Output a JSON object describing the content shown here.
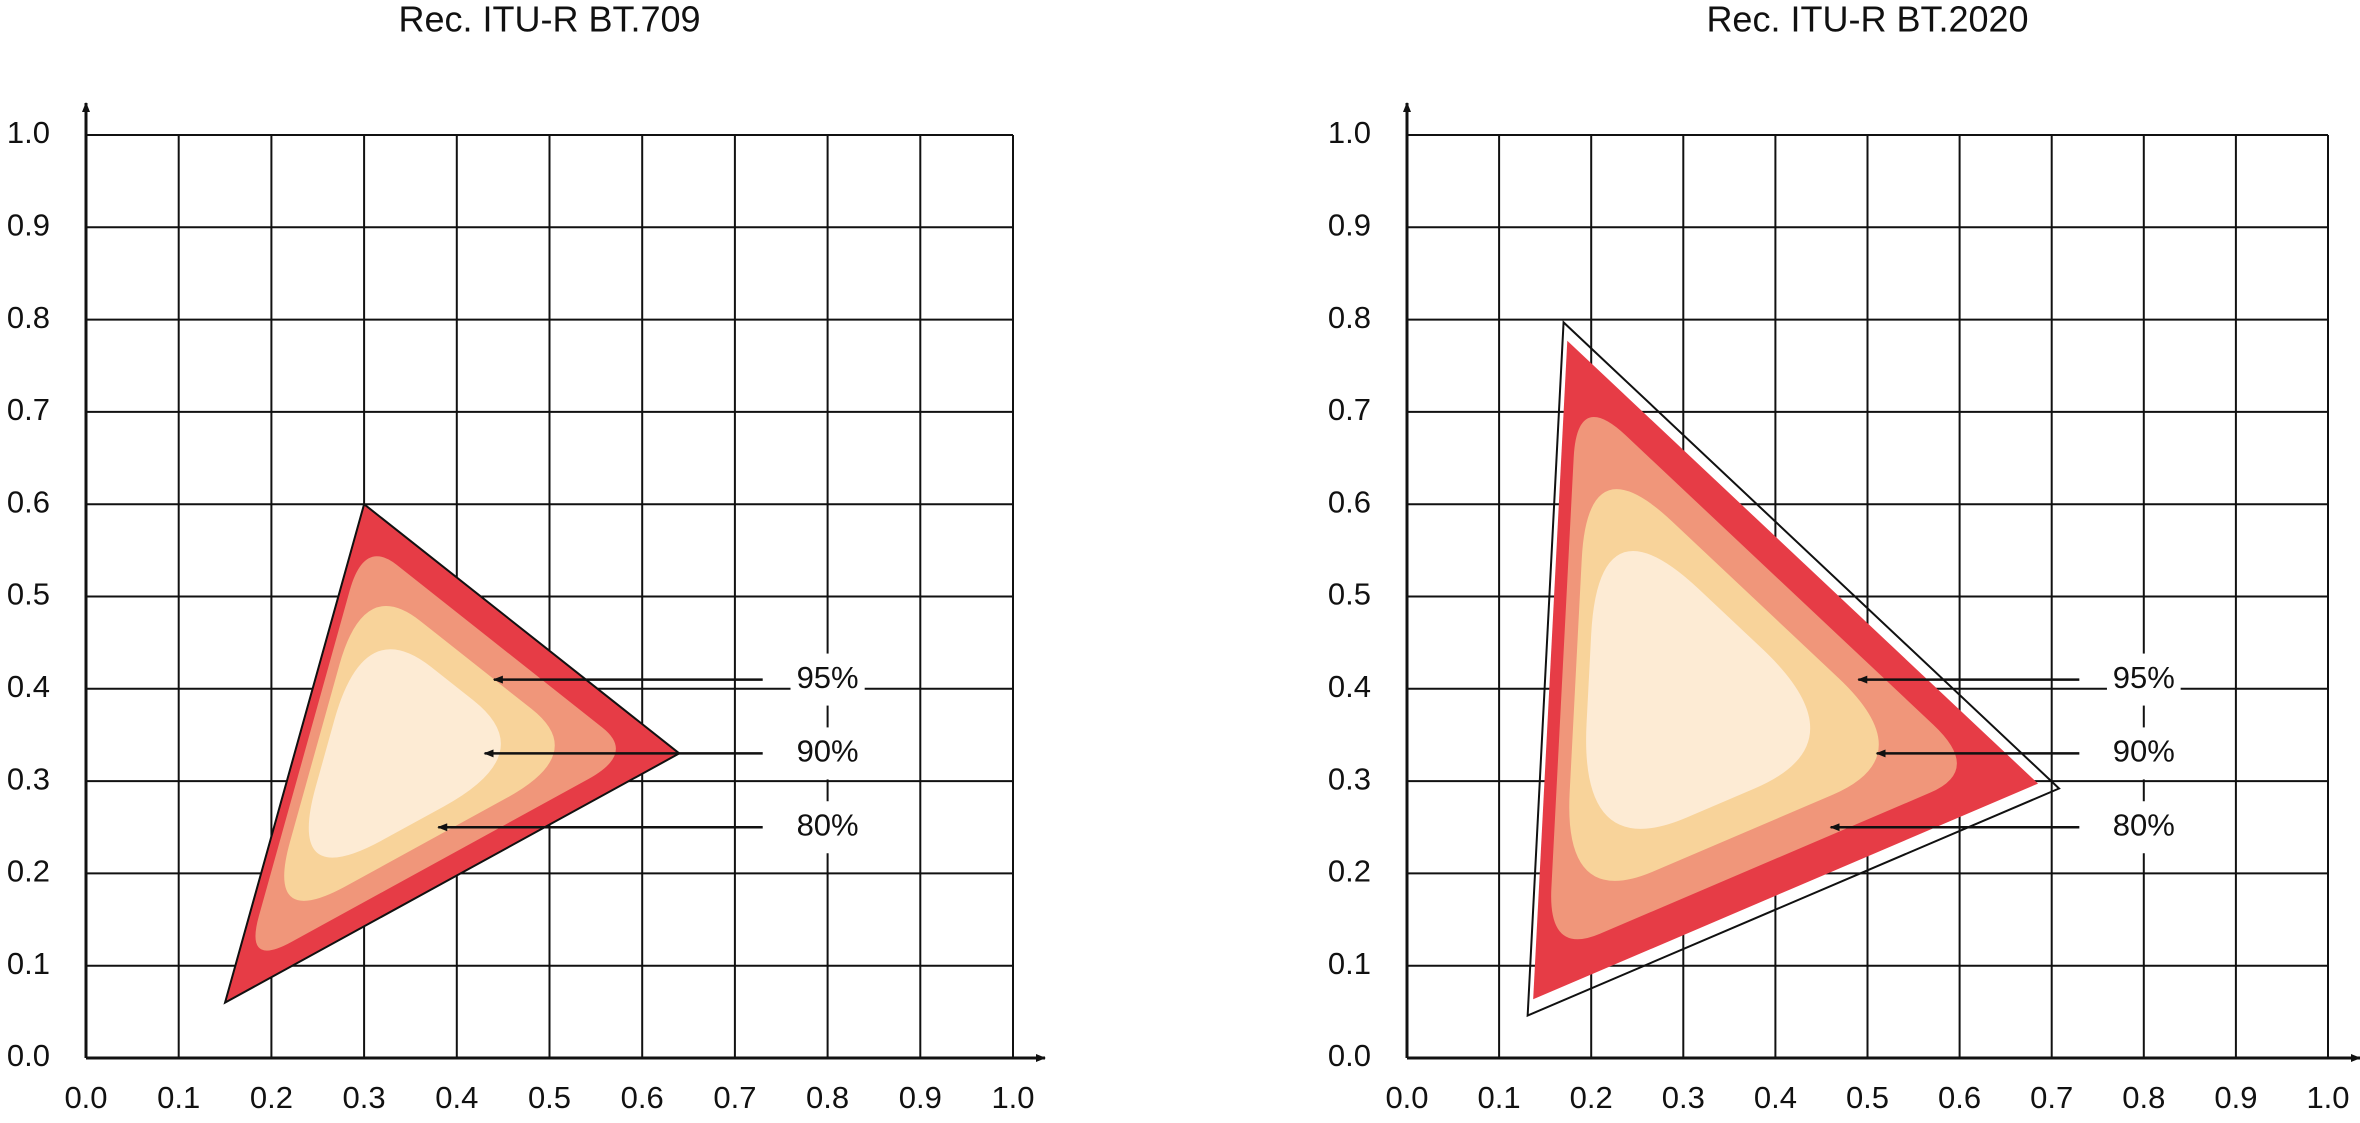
{
  "chart_data": [
    {
      "type": "gamut",
      "title": "Rec. ITU-R BT.709",
      "x": [
        0.64,
        0.3,
        0.15
      ],
      "y": [
        0.33,
        0.6,
        0.06
      ],
      "xlim": [
        0,
        1
      ],
      "ylim": [
        0,
        1
      ],
      "xticks": [
        {
          "value": 0,
          "label": "0.0"
        },
        0.1,
        0.2,
        0.3,
        0.4,
        0.5,
        0.6,
        0.7,
        0.8,
        0.9,
        {
          "value": 1,
          "label": "1.0"
        }
      ],
      "yticks": [
        {
          "value": 0,
          "label": "0.0"
        },
        0.1,
        0.2,
        0.3,
        0.4,
        0.5,
        0.6,
        0.7,
        0.8,
        0.9,
        {
          "value": 1,
          "label": "1.0"
        }
      ],
      "annotations": [
        "95%",
        "90%",
        "80%"
      ],
      "colors": [
        "#e63c46",
        "#f0967a",
        "#f8d39a",
        "#fdebd4"
      ]
    },
    {
      "type": "gamut",
      "title": "Rec. ITU-R BT.2020",
      "x": [
        0.708,
        0.17,
        0.131
      ],
      "y": [
        0.292,
        0.797,
        0.046
      ],
      "xlim": [
        0,
        1
      ],
      "ylim": [
        0,
        1
      ],
      "xticks": [
        {
          "value": 0,
          "label": "0.0"
        },
        0.1,
        0.2,
        0.3,
        0.4,
        0.5,
        0.6,
        0.7,
        0.8,
        0.9,
        {
          "value": 1,
          "label": "1.0"
        }
      ],
      "yticks": [
        {
          "value": 0,
          "label": "0.0"
        },
        0.1,
        0.2,
        0.3,
        0.4,
        0.5,
        0.6,
        0.7,
        0.8,
        0.9,
        {
          "value": 1,
          "label": "1.0"
        }
      ],
      "annotations": [
        "95%",
        "90%",
        "80%"
      ],
      "colors": [
        "#e63c46",
        "#f0967a",
        "#f8d39a",
        "#fdebd4"
      ]
    }
  ]
}
